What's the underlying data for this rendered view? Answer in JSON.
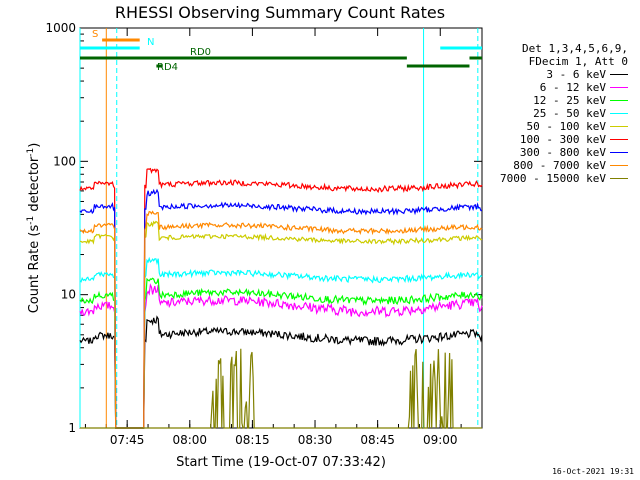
{
  "chart_data": {
    "type": "line",
    "title": "RHESSI Observing Summary Count Rates",
    "xlabel": "Start Time (19-Oct-07 07:33:42)",
    "ylabel_main": "Count Rate (s",
    "ylabel_sup1": "-1",
    "ylabel_mid": " detector",
    "ylabel_sup2": "-1",
    "ylabel_end": ")",
    "y_scale": "log",
    "ylim": [
      1,
      1000
    ],
    "xlim": [
      "07:33:42",
      "09:10:00"
    ],
    "x_ticks": [
      "07:45",
      "08:00",
      "08:15",
      "08:30",
      "08:45",
      "09:00"
    ],
    "y_ticks": [
      "1",
      "10",
      "100",
      "1000"
    ],
    "legend_header": [
      "Det 1,3,4,5,6,9,",
      "FDecim 1, Att 0"
    ],
    "series": [
      {
        "name": "3 - 6 keV",
        "color": "#000000",
        "base": 4.5,
        "amp": 2.0,
        "spike": 0
      },
      {
        "name": "6 - 12 keV",
        "color": "#ff00ff",
        "base": 7.5,
        "amp": 4.0,
        "spike": 0
      },
      {
        "name": "12 - 25 keV",
        "color": "#00ff00",
        "base": 9.0,
        "amp": 3.5,
        "spike": 0
      },
      {
        "name": "25 - 50 keV",
        "color": "#00ffff",
        "base": 13.0,
        "amp": 4.0,
        "spike": 0
      },
      {
        "name": "50 - 100 keV",
        "color": "#cccc00",
        "base": 25.0,
        "amp": 6.0,
        "spike": 0
      },
      {
        "name": "100 - 300 keV",
        "color": "#ff0000",
        "base": 62.0,
        "amp": 18.0,
        "spike": 120
      },
      {
        "name": "300 - 800 keV",
        "color": "#0000ff",
        "base": 42.0,
        "amp": 12.0,
        "spike": 0
      },
      {
        "name": "800 - 7000 keV",
        "color": "#ff8800",
        "base": 30.0,
        "amp": 8.0,
        "spike": 0
      },
      {
        "name": "7000 - 15000 keV",
        "color": "#808000",
        "base": 1.0,
        "amp": 0,
        "spike": 0
      }
    ],
    "flags": [
      {
        "label": "S",
        "color": "#ff8800",
        "segments": [
          [
            "07:39:00",
            "07:41:00"
          ],
          [
            "07:40:30",
            "07:48:00"
          ]
        ]
      },
      {
        "label": "N",
        "color": "#00ffff",
        "segments": [
          [
            "07:33:42",
            "07:48:00"
          ],
          [
            "09:00:00",
            "09:10:00"
          ]
        ]
      },
      {
        "label": "RD0",
        "color": "#006400",
        "segments": [
          [
            "07:33:42",
            "08:52:00"
          ],
          [
            "09:07:00",
            "09:10:00"
          ]
        ]
      },
      {
        "label": "RD4",
        "color": "#006400",
        "segments": [
          [
            "07:52:00",
            "07:53:30"
          ],
          [
            "08:52:00",
            "09:07:00"
          ]
        ]
      }
    ],
    "orange_lines": [
      "07:40:00"
    ],
    "cyan_solid_lines": [
      "07:33:42",
      "08:56:00"
    ],
    "cyan_dashed_lines": [
      "07:42:30",
      "09:09:00"
    ]
  },
  "footer": "16-Oct-2021 19:31"
}
